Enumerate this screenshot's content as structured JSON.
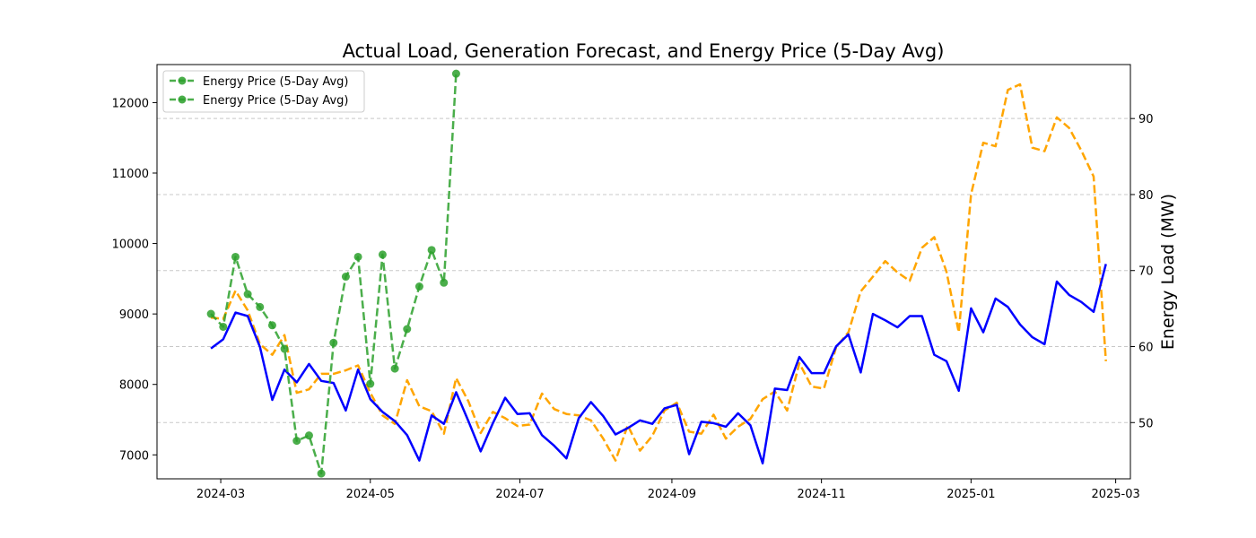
{
  "chart_data": {
    "type": "line",
    "title": "Actual Load, Generation Forecast, and Energy Price (5-Day Avg)",
    "xlabel": "",
    "ylabel_left": "",
    "ylabel_right": "Energy Load (MW)",
    "x_ticks": [
      "2024-03",
      "2024-05",
      "2024-07",
      "2024-09",
      "2024-11",
      "2025-01",
      "2025-03"
    ],
    "xlim": [
      "2024-02-04",
      "2025-03-07"
    ],
    "y_left": {
      "lim": [
        6660,
        12540
      ],
      "ticks": [
        7000,
        8000,
        9000,
        10000,
        11000,
        12000
      ]
    },
    "y_right": {
      "lim": [
        42.6,
        97.1
      ],
      "ticks": [
        50,
        60,
        70,
        80,
        90
      ]
    },
    "grid": "horizontal dashed at right-axis ticks",
    "legend": {
      "position": "top-left",
      "entries": [
        "Energy Price (5-Day Avg)",
        "Energy Price (5-Day Avg)"
      ]
    },
    "colors": {
      "actual": "#0000ff",
      "forecast": "#ffa500",
      "price": "#2ca02c"
    },
    "series": [
      {
        "axis": "left",
        "style": "solid",
        "x": [
          "2024-02-26",
          "2024-03-02",
          "2024-03-07",
          "2024-03-12",
          "2024-03-17",
          "2024-03-22",
          "2024-03-27",
          "2024-04-01",
          "2024-04-06",
          "2024-04-11",
          "2024-04-16",
          "2024-04-21",
          "2024-04-26",
          "2024-05-01",
          "2024-05-06",
          "2024-05-11",
          "2024-05-16",
          "2024-05-21",
          "2024-05-26",
          "2024-05-31",
          "2024-06-05",
          "2024-06-10",
          "2024-06-15",
          "2024-06-20",
          "2024-06-25",
          "2024-06-30",
          "2024-07-05",
          "2024-07-10",
          "2024-07-15",
          "2024-07-20",
          "2024-07-25",
          "2024-07-30",
          "2024-08-04",
          "2024-08-09",
          "2024-08-14",
          "2024-08-19",
          "2024-08-24",
          "2024-08-29",
          "2024-09-03",
          "2024-09-08",
          "2024-09-13",
          "2024-09-18",
          "2024-09-23",
          "2024-09-28",
          "2024-10-03",
          "2024-10-08",
          "2024-10-13",
          "2024-10-18",
          "2024-10-23",
          "2024-10-28",
          "2024-11-02",
          "2024-11-07",
          "2024-11-12",
          "2024-11-17",
          "2024-11-22",
          "2024-11-27",
          "2024-12-02",
          "2024-12-07",
          "2024-12-12",
          "2024-12-17",
          "2024-12-22",
          "2024-12-27",
          "2025-01-01",
          "2025-01-06",
          "2025-01-11",
          "2025-01-16",
          "2025-01-21",
          "2025-01-26",
          "2025-01-31",
          "2025-02-05",
          "2025-02-10",
          "2025-02-15",
          "2025-02-20",
          "2025-02-25"
        ],
        "values": [
          8510,
          8640,
          9020,
          8970,
          8530,
          7780,
          8210,
          8030,
          8290,
          8050,
          8020,
          7630,
          8210,
          7790,
          7610,
          7480,
          7280,
          6920,
          7560,
          7440,
          7890,
          7480,
          7050,
          7450,
          7810,
          7580,
          7590,
          7280,
          7130,
          6950,
          7520,
          7750,
          7550,
          7290,
          7380,
          7490,
          7440,
          7660,
          7710,
          7010,
          7470,
          7450,
          7400,
          7590,
          7420,
          6880,
          7940,
          7920,
          8390,
          8160,
          8160,
          8540,
          8710,
          8170,
          9000,
          8910,
          8810,
          8970,
          8970,
          8420,
          8330,
          7910,
          9080,
          8740,
          9220,
          9100,
          8850,
          8670,
          8570,
          9460,
          9270,
          9170,
          9030,
          9710
        ]
      },
      {
        "axis": "left",
        "style": "dashed",
        "x": [
          "2024-02-26",
          "2024-03-02",
          "2024-03-07",
          "2024-03-12",
          "2024-03-17",
          "2024-03-22",
          "2024-03-27",
          "2024-04-01",
          "2024-04-06",
          "2024-04-11",
          "2024-04-16",
          "2024-04-21",
          "2024-04-26",
          "2024-05-01",
          "2024-05-06",
          "2024-05-11",
          "2024-05-16",
          "2024-05-21",
          "2024-05-26",
          "2024-05-31",
          "2024-06-05",
          "2024-06-10",
          "2024-06-15",
          "2024-06-20",
          "2024-06-25",
          "2024-06-30",
          "2024-07-05",
          "2024-07-10",
          "2024-07-15",
          "2024-07-20",
          "2024-07-25",
          "2024-07-30",
          "2024-08-04",
          "2024-08-09",
          "2024-08-14",
          "2024-08-19",
          "2024-08-24",
          "2024-08-29",
          "2024-09-03",
          "2024-09-08",
          "2024-09-13",
          "2024-09-18",
          "2024-09-23",
          "2024-09-28",
          "2024-10-03",
          "2024-10-08",
          "2024-10-13",
          "2024-10-18",
          "2024-10-23",
          "2024-10-28",
          "2024-11-02",
          "2024-11-07",
          "2024-11-12",
          "2024-11-17",
          "2024-11-22",
          "2024-11-27",
          "2024-12-02",
          "2024-12-07",
          "2024-12-12",
          "2024-12-17",
          "2024-12-22",
          "2024-12-27",
          "2025-01-01",
          "2025-01-06",
          "2025-01-11",
          "2025-01-16",
          "2025-01-21",
          "2025-01-26",
          "2025-01-31",
          "2025-02-05",
          "2025-02-10",
          "2025-02-15",
          "2025-02-20",
          "2025-02-25"
        ],
        "values": [
          8950,
          8930,
          9330,
          9050,
          8570,
          8420,
          8700,
          7880,
          7930,
          8150,
          8150,
          8200,
          8270,
          7880,
          7560,
          7440,
          8060,
          7690,
          7620,
          7300,
          8090,
          7760,
          7310,
          7610,
          7520,
          7410,
          7430,
          7870,
          7650,
          7580,
          7560,
          7490,
          7230,
          6920,
          7420,
          7060,
          7270,
          7630,
          7740,
          7330,
          7300,
          7570,
          7230,
          7400,
          7510,
          7790,
          7900,
          7630,
          8300,
          7970,
          7940,
          8530,
          8740,
          9320,
          9530,
          9750,
          9590,
          9470,
          9940,
          10090,
          9600,
          8740,
          10700,
          11430,
          11380,
          12180,
          12260,
          11360,
          11310,
          11790,
          11640,
          11320,
          10950,
          8330
        ]
      },
      {
        "axis": "right",
        "style": "dashed-markers",
        "x": [
          "2024-02-26",
          "2024-03-02",
          "2024-03-07",
          "2024-03-12",
          "2024-03-17",
          "2024-03-22",
          "2024-03-27",
          "2024-04-01",
          "2024-04-06",
          "2024-04-11",
          "2024-04-16",
          "2024-04-21",
          "2024-04-26",
          "2024-05-01",
          "2024-05-06",
          "2024-05-11",
          "2024-05-16",
          "2024-05-21",
          "2024-05-26",
          "2024-05-31",
          "2024-06-05"
        ],
        "values": [
          64.3,
          62.6,
          71.8,
          66.9,
          65.2,
          62.8,
          59.7,
          47.6,
          48.3,
          43.3,
          60.5,
          69.2,
          71.8,
          55.1,
          72.1,
          57.1,
          62.3,
          67.9,
          72.7,
          68.4,
          95.9
        ]
      }
    ]
  }
}
